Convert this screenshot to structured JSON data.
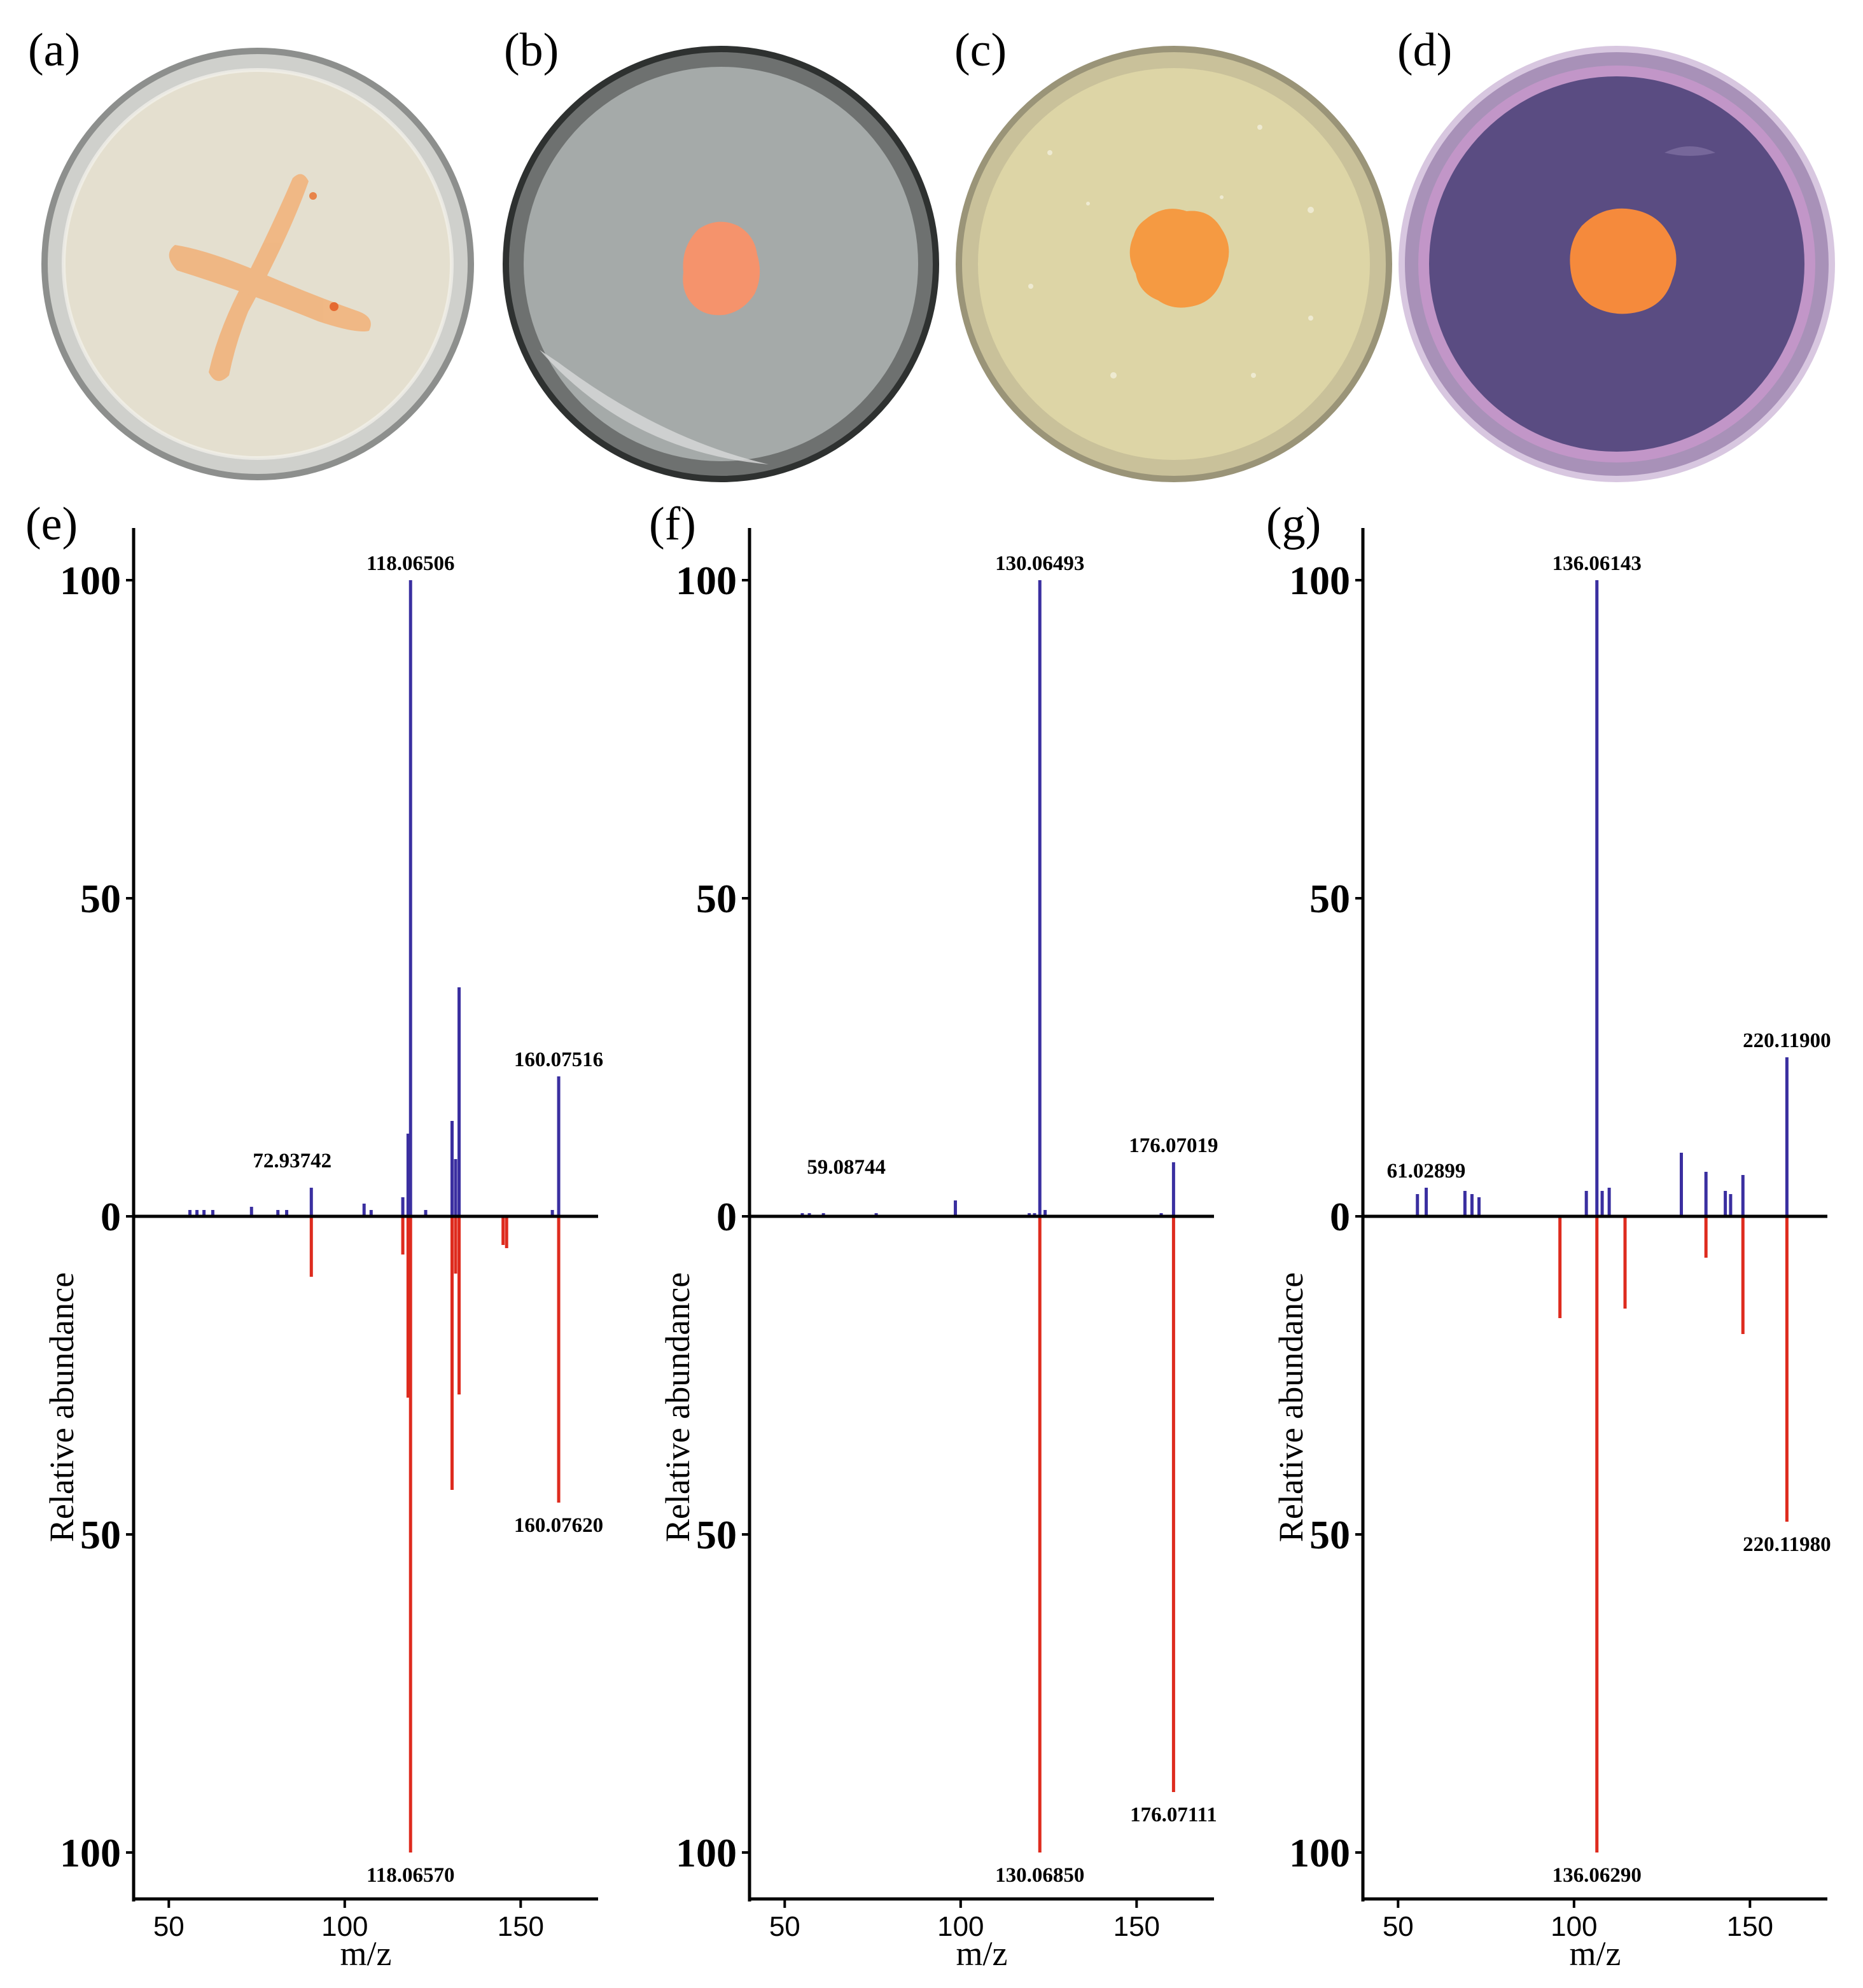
{
  "photos": [
    {
      "label": "(a)",
      "agar_color": "#e4dfcf",
      "colony_color": "#f0b581",
      "colony_shape": "cross-streak"
    },
    {
      "label": "(b)",
      "agar_color": "#a5aaa9",
      "colony_color": "#f5936c",
      "colony_shape": "single-colony"
    },
    {
      "label": "(c)",
      "agar_color": "#ddd5a6",
      "colony_color": "#f59a42",
      "colony_shape": "single-colony"
    },
    {
      "label": "(d)",
      "agar_color": "#5a4c82",
      "colony_color": "#f58a3c",
      "colony_shape": "single-colony"
    }
  ],
  "chart_data": [
    {
      "type": "bar",
      "panel": "(e)",
      "xlabel": "m/z",
      "ylabel": "Relative abundance",
      "xlim": [
        40,
        172
      ],
      "ylim": [
        -100,
        108
      ],
      "xticks": [
        50,
        100,
        150
      ],
      "yticks": [
        {
          "value": 100,
          "label": "100"
        },
        {
          "value": 50,
          "label": "50"
        },
        {
          "value": 0,
          "label": "0"
        },
        {
          "value": -50,
          "label": "50"
        },
        {
          "value": -100,
          "label": "100"
        }
      ],
      "series": [
        {
          "name": "experimental",
          "color": "#3a2fa0",
          "peaks": [
            {
              "mz": 56,
              "y": 1
            },
            {
              "mz": 58,
              "y": 1
            },
            {
              "mz": 60,
              "y": 1
            },
            {
              "mz": 62.5,
              "y": 1
            },
            {
              "mz": 73.5,
              "y": 1.5
            },
            {
              "mz": 81,
              "y": 1
            },
            {
              "mz": 83.5,
              "y": 1
            },
            {
              "mz": 90.5,
              "y": 4.5
            },
            {
              "mz": 105.5,
              "y": 2
            },
            {
              "mz": 107.5,
              "y": 1
            },
            {
              "mz": 116.5,
              "y": 3
            },
            {
              "mz": 118,
              "y": 13
            },
            {
              "mz": 118.7,
              "y": 100
            },
            {
              "mz": 123,
              "y": 1
            },
            {
              "mz": 130.5,
              "y": 15
            },
            {
              "mz": 131.5,
              "y": 9
            },
            {
              "mz": 132.5,
              "y": 36
            },
            {
              "mz": 159,
              "y": 1
            },
            {
              "mz": 160.8,
              "y": 22
            }
          ]
        },
        {
          "name": "reference",
          "color": "#de2b1e",
          "peaks": [
            {
              "mz": 90.5,
              "y": -9.5
            },
            {
              "mz": 116.5,
              "y": -6
            },
            {
              "mz": 118,
              "y": -28.5
            },
            {
              "mz": 118.7,
              "y": -100
            },
            {
              "mz": 130.5,
              "y": -43
            },
            {
              "mz": 131.5,
              "y": -9
            },
            {
              "mz": 132.5,
              "y": -28
            },
            {
              "mz": 145,
              "y": -4.5
            },
            {
              "mz": 146,
              "y": -5
            },
            {
              "mz": 160.8,
              "y": -45
            }
          ]
        }
      ],
      "annotations": [
        {
          "text": "118.06506",
          "mz": 118.7,
          "y": 100,
          "pos": "above"
        },
        {
          "text": "160.07516",
          "mz": 160.8,
          "y": 22,
          "pos": "above"
        },
        {
          "text": "72.93742",
          "mz": 90.5,
          "y": 4.5,
          "pos": "above-left"
        },
        {
          "text": "160.07620",
          "mz": 160.8,
          "y": -45,
          "pos": "below"
        },
        {
          "text": "118.06570",
          "mz": 118.7,
          "y": -100,
          "pos": "below"
        }
      ]
    },
    {
      "type": "bar",
      "panel": "(f)",
      "xlabel": "m/z",
      "ylabel": "Relative abundance",
      "xlim": [
        40,
        172
      ],
      "ylim": [
        -100,
        108
      ],
      "xticks": [
        50,
        100,
        150
      ],
      "yticks": [
        {
          "value": 100,
          "label": "100"
        },
        {
          "value": 50,
          "label": "50"
        },
        {
          "value": 0,
          "label": "0"
        },
        {
          "value": -50,
          "label": "50"
        },
        {
          "value": -100,
          "label": "100"
        }
      ],
      "series": [
        {
          "name": "experimental",
          "color": "#3a2fa0",
          "peaks": [
            {
              "mz": 55,
              "y": 0.5
            },
            {
              "mz": 57,
              "y": 0.5
            },
            {
              "mz": 61,
              "y": 0.5
            },
            {
              "mz": 76,
              "y": 0.5
            },
            {
              "mz": 98.5,
              "y": 2.5
            },
            {
              "mz": 119.5,
              "y": 0.5
            },
            {
              "mz": 121,
              "y": 0.5
            },
            {
              "mz": 122.5,
              "y": 100
            },
            {
              "mz": 124,
              "y": 1
            },
            {
              "mz": 157,
              "y": 0.5
            },
            {
              "mz": 160.5,
              "y": 8.5
            }
          ]
        },
        {
          "name": "reference",
          "color": "#de2b1e",
          "peaks": [
            {
              "mz": 122.5,
              "y": -100
            },
            {
              "mz": 160.5,
              "y": -90.5
            }
          ]
        }
      ],
      "annotations": [
        {
          "text": "130.06493",
          "mz": 122.5,
          "y": 100,
          "pos": "above"
        },
        {
          "text": "176.07019",
          "mz": 160.5,
          "y": 8.5,
          "pos": "above"
        },
        {
          "text": "59.08744",
          "mz": 61,
          "y": 0.5,
          "pos": "above-right"
        },
        {
          "text": "176.07111",
          "mz": 160.5,
          "y": -90.5,
          "pos": "below"
        },
        {
          "text": "130.06850",
          "mz": 122.5,
          "y": -100,
          "pos": "below"
        }
      ]
    },
    {
      "type": "bar",
      "panel": "(g)",
      "xlabel": "m/z",
      "ylabel": "Relative abundance",
      "xlim": [
        40,
        172
      ],
      "ylim": [
        -100,
        108
      ],
      "xticks": [
        50,
        100,
        150
      ],
      "yticks": [
        {
          "value": 100,
          "label": "100"
        },
        {
          "value": 50,
          "label": "50"
        },
        {
          "value": 0,
          "label": "0"
        },
        {
          "value": -50,
          "label": "50"
        },
        {
          "value": -100,
          "label": "100"
        }
      ],
      "series": [
        {
          "name": "experimental",
          "color": "#3a2fa0",
          "peaks": [
            {
              "mz": 55.5,
              "y": 3.5
            },
            {
              "mz": 58,
              "y": 4.5
            },
            {
              "mz": 69,
              "y": 4
            },
            {
              "mz": 71,
              "y": 3.5
            },
            {
              "mz": 73,
              "y": 3
            },
            {
              "mz": 103.5,
              "y": 4
            },
            {
              "mz": 106.5,
              "y": 100
            },
            {
              "mz": 108,
              "y": 4
            },
            {
              "mz": 110,
              "y": 4.5
            },
            {
              "mz": 130.5,
              "y": 10
            },
            {
              "mz": 137.5,
              "y": 7
            },
            {
              "mz": 143,
              "y": 4
            },
            {
              "mz": 144.5,
              "y": 3.5
            },
            {
              "mz": 148,
              "y": 6.5
            },
            {
              "mz": 160.5,
              "y": 25
            }
          ]
        },
        {
          "name": "reference",
          "color": "#de2b1e",
          "peaks": [
            {
              "mz": 96,
              "y": -16
            },
            {
              "mz": 106.5,
              "y": -100
            },
            {
              "mz": 114.5,
              "y": -14.5
            },
            {
              "mz": 137.5,
              "y": -6.5
            },
            {
              "mz": 148,
              "y": -18.5
            },
            {
              "mz": 160.5,
              "y": -48
            }
          ]
        }
      ],
      "annotations": [
        {
          "text": "136.06143",
          "mz": 106.5,
          "y": 100,
          "pos": "above"
        },
        {
          "text": "220.11900",
          "mz": 160.5,
          "y": 25,
          "pos": "above"
        },
        {
          "text": "61.02899",
          "mz": 58,
          "y": 4.5,
          "pos": "above"
        },
        {
          "text": "220.11980",
          "mz": 160.5,
          "y": -48,
          "pos": "below"
        },
        {
          "text": "136.06290",
          "mz": 106.5,
          "y": -100,
          "pos": "below"
        }
      ]
    }
  ]
}
